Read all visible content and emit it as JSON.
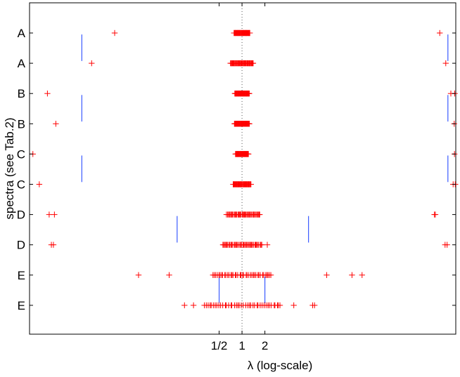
{
  "chart_data": {
    "type": "scatter",
    "xlabel": "λ (log-scale)",
    "ylabel": "spectra (see Tab.2)",
    "x_scale": "log2",
    "xlim": [
      0.0016,
      650
    ],
    "x_ticks": [
      {
        "value": 0.5,
        "label": "1/2"
      },
      {
        "value": 1,
        "label": "1"
      },
      {
        "value": 2,
        "label": "2"
      }
    ],
    "reference_line_x": 1,
    "colors": {
      "points": "#ff0000",
      "bars": "#3b5bff",
      "frame": "#000000"
    },
    "rows": [
      {
        "label": "A",
        "outliers": [
          0.0211,
          400
        ],
        "core_range": [
          0.78,
          1.28
        ],
        "bars": [
          {
            "x": 0.0078,
            "y_from": 0.05,
            "y_to": 0.95
          },
          {
            "x": 512,
            "y_from": 0.05,
            "y_to": 0.95
          }
        ]
      },
      {
        "label": "A",
        "outliers": [
          0.0105,
          480
        ],
        "core_range": [
          0.7,
          1.42
        ]
      },
      {
        "label": "B",
        "outliers": [
          0.00275,
          560,
          630
        ],
        "core_range": [
          0.8,
          1.25
        ],
        "bars": [
          {
            "x": 0.0078,
            "y_from": 0.05,
            "y_to": 0.95
          },
          {
            "x": 512,
            "y_from": 0.05,
            "y_to": 0.95
          }
        ]
      },
      {
        "label": "B",
        "outliers": [
          0.00355,
          620
        ],
        "core_range": [
          0.79,
          1.26
        ]
      },
      {
        "label": "C",
        "outliers": [
          0.00177,
          625
        ],
        "core_range": [
          0.82,
          1.22
        ],
        "bars": [
          {
            "x": 0.0078,
            "y_from": 0.05,
            "y_to": 0.95
          },
          {
            "x": 512,
            "y_from": 0.05,
            "y_to": 0.95
          }
        ]
      },
      {
        "label": "C",
        "outliers": [
          0.00215,
          600,
          640
        ],
        "core_range": [
          0.76,
          1.32
        ]
      },
      {
        "label": "D",
        "outliers": [
          0.0029,
          0.0034,
          340,
          350
        ],
        "core_range": [
          0.62,
          1.75
        ],
        "bars": [
          {
            "x": 0.14,
            "y_from": 0.05,
            "y_to": 0.95
          },
          {
            "x": 7.5,
            "y_from": 0.05,
            "y_to": 0.95
          }
        ]
      },
      {
        "label": "D",
        "outliers": [
          0.0031,
          0.0033,
          2.15,
          470,
          500
        ],
        "core_range": [
          0.55,
          1.85
        ]
      },
      {
        "label": "E",
        "outliers": [
          0.0435,
          0.11,
          13,
          28,
          38
        ],
        "core_range": [
          0.4,
          2.5
        ],
        "bars": [
          {
            "x": 0.5,
            "y_from": 0.05,
            "y_to": 0.95
          },
          {
            "x": 2,
            "y_from": 0.05,
            "y_to": 0.95
          }
        ]
      },
      {
        "label": "E",
        "outliers": [
          0.175,
          0.23,
          0.32,
          3.0,
          4.8,
          8.5,
          9.0
        ],
        "core_range": [
          0.33,
          3.2
        ]
      }
    ]
  }
}
